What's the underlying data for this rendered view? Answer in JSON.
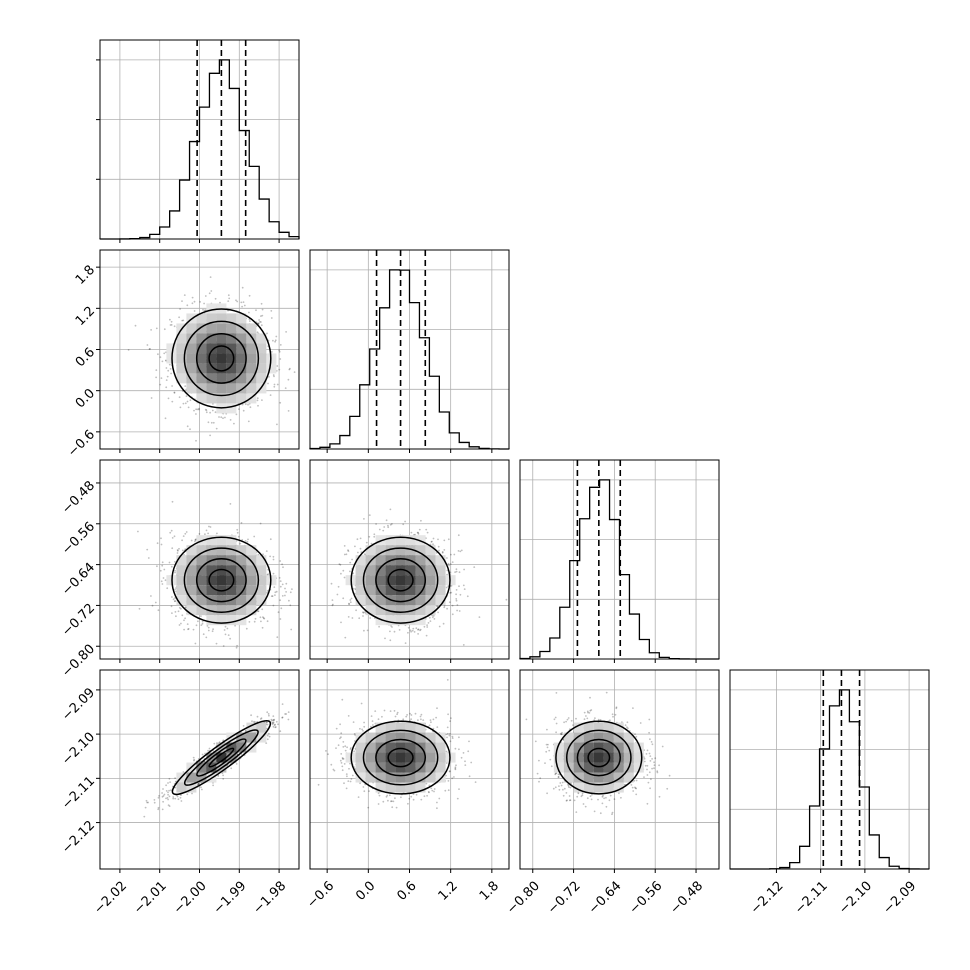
{
  "chart_data": {
    "type": "corner",
    "params": 4,
    "grid": true,
    "quantile_lines": "dashed",
    "marginals": [
      {
        "range": [
          -2.025,
          -1.975
        ],
        "ticks": [
          "−2.02",
          "−2.01",
          "−2.00",
          "−1.99",
          "−1.98"
        ],
        "tick_values": [
          -2.02,
          -2.01,
          -2.0,
          -1.99,
          -1.98
        ],
        "quantiles": [
          -2.0006,
          -1.9945,
          -1.9884
        ],
        "hist_x": -1.9945,
        "hist_sigma": 0.0062,
        "ymax_rel": 1.0
      },
      {
        "range": [
          -0.85,
          2.05
        ],
        "ticks": [
          "−0.6",
          "0.0",
          "0.6",
          "1.2",
          "1.8"
        ],
        "tick_values": [
          -0.6,
          0.0,
          0.6,
          1.2,
          1.8
        ],
        "quantiles": [
          0.12,
          0.47,
          0.83
        ],
        "hist_x": 0.47,
        "hist_sigma": 0.36,
        "ymax_rel": 1.0
      },
      {
        "range": [
          -0.825,
          -0.435
        ],
        "ticks": [
          "−0.80",
          "−0.72",
          "−0.64",
          "−0.56",
          "−0.48"
        ],
        "tick_values": [
          -0.8,
          -0.72,
          -0.64,
          -0.56,
          -0.48
        ],
        "quantiles": [
          -0.7125,
          -0.6705,
          -0.6285
        ],
        "hist_x": -0.6705,
        "hist_sigma": 0.042,
        "ymax_rel": 1.0
      },
      {
        "range": [
          -2.1305,
          -2.0855
        ],
        "ticks": [
          "−2.12",
          "−2.11",
          "−2.10",
          "−2.09"
        ],
        "tick_values": [
          -2.12,
          -2.11,
          -2.1,
          -2.09
        ],
        "quantiles": [
          -2.1094,
          -2.1053,
          -2.1012
        ],
        "hist_x": -2.1053,
        "hist_sigma": 0.0041,
        "ymax_rel": 1.0
      }
    ],
    "joint": [
      {
        "row": 1,
        "col": 0,
        "mean": [
          -1.9945,
          0.47
        ],
        "corr": -0.05,
        "shade": "#3a3a3a"
      },
      {
        "row": 2,
        "col": 0,
        "mean": [
          -1.9945,
          -0.6705
        ],
        "corr": -0.05,
        "shade": "#3a3a3a"
      },
      {
        "row": 2,
        "col": 1,
        "mean": [
          0.47,
          -0.6705
        ],
        "corr": 0.0,
        "shade": "#3a3a3a"
      },
      {
        "row": 3,
        "col": 0,
        "mean": [
          -1.9945,
          -2.1053
        ],
        "corr": 0.93,
        "shade": "#3a3a3a"
      },
      {
        "row": 3,
        "col": 1,
        "mean": [
          0.47,
          -2.1053
        ],
        "corr": 0.0,
        "shade": "#3a3a3a"
      },
      {
        "row": 3,
        "col": 2,
        "mean": [
          -0.6705,
          -2.1053
        ],
        "corr": 0.0,
        "shade": "#3a3a3a"
      }
    ],
    "left_tick_labels": [
      {
        "row": 1,
        "ticks": [
          "−0.6",
          "0.0",
          "0.6",
          "1.2",
          "1.8"
        ]
      },
      {
        "row": 2,
        "ticks": [
          "−0.80",
          "−0.72",
          "−0.64",
          "−0.56",
          "−0.48"
        ]
      },
      {
        "row": 3,
        "ticks": [
          "−2.12",
          "−2.11",
          "−2.10",
          "−2.09"
        ]
      }
    ],
    "colors": {
      "line": "#000000",
      "grid": "#b0b0b0",
      "scatter": "#000000"
    }
  }
}
